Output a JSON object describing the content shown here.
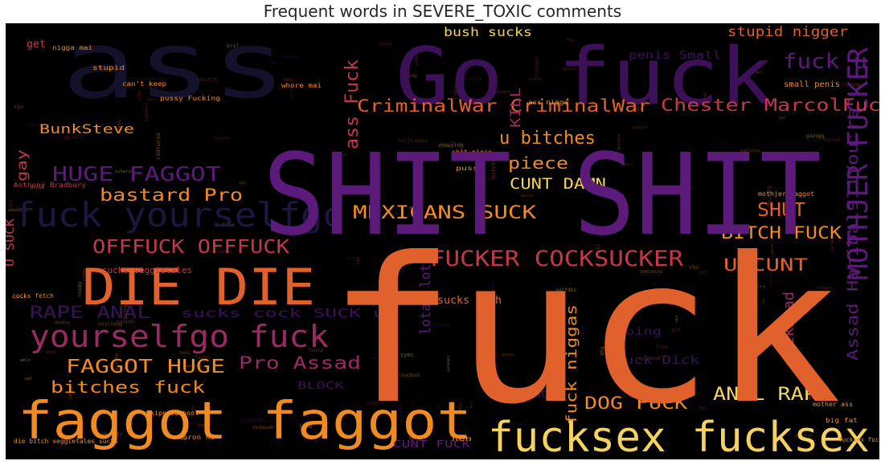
{
  "chart_data": {
    "type": "wordcloud",
    "title": "Frequent words in SEVERE_TOXIC comments",
    "background": "#000000",
    "colormap": "inferno",
    "colors": {
      "purple": "#5c1a7a",
      "deep_purple": "#3d1158",
      "orange": "#e0612c",
      "amber": "#f28a22",
      "yellow": "#f5d25e",
      "red": "#c4384a",
      "magenta": "#9b2964",
      "navy": "#14112b"
    },
    "words": [
      {
        "text": "fuck",
        "weight": 1.0,
        "color": "#e0612c"
      },
      {
        "text": "SHIT SHIT",
        "weight": 0.78,
        "color": "#5c1a7a"
      },
      {
        "text": "ass",
        "weight": 0.6,
        "color": "#14112b"
      },
      {
        "text": "Go fuck",
        "weight": 0.6,
        "color": "#3d1158"
      },
      {
        "text": "faggot faggot",
        "weight": 0.45,
        "color": "#f28a22"
      },
      {
        "text": "DIE DIE",
        "weight": 0.43,
        "color": "#e0612c"
      },
      {
        "text": "fucksex fucksex",
        "weight": 0.33,
        "color": "#f5d25e"
      },
      {
        "text": "fuck yourselfgo",
        "weight": 0.28,
        "color": "#1d1640"
      },
      {
        "text": "yourselfgo fuck",
        "weight": 0.26,
        "color": "#9b2964"
      },
      {
        "text": "MOTHJER FUCKER",
        "weight": 0.24,
        "color": "#5c1a7a"
      },
      {
        "text": "FUCKER COCKSUCKER",
        "weight": 0.17,
        "color": "#c4384a"
      },
      {
        "text": "fuck u",
        "weight": 0.17,
        "color": "#5c1a7a"
      },
      {
        "text": "HUGE FAGGOT",
        "weight": 0.16,
        "color": "#5c1a7a"
      },
      {
        "text": "OFFFUCK OFFFUCK",
        "weight": 0.15,
        "color": "#c4384a"
      },
      {
        "text": "FAGGOT HUGE",
        "weight": 0.15,
        "color": "#f28a22"
      },
      {
        "text": "MEXICANS SUCK",
        "weight": 0.14,
        "color": "#f28a22"
      },
      {
        "text": "CriminalWar CriminalWar",
        "weight": 0.14,
        "color": "#e0612c"
      },
      {
        "text": "Chester MarcolFuck",
        "weight": 0.14,
        "color": "#c4384a"
      },
      {
        "text": "ANAL RAPE",
        "weight": 0.14,
        "color": "#f5d25e"
      },
      {
        "text": "Pro Assad",
        "weight": 0.14,
        "color": "#9b2964"
      },
      {
        "text": "bitches fuck",
        "weight": 0.14,
        "color": "#f28a22"
      },
      {
        "text": "u bitches",
        "weight": 0.14,
        "color": "#f28a22"
      },
      {
        "text": "BITCH FUCK",
        "weight": 0.14,
        "color": "#f28a22"
      },
      {
        "text": "DOG FUCK",
        "weight": 0.14,
        "color": "#f28a22"
      },
      {
        "text": "SHUT",
        "weight": 0.14,
        "color": "#e0612c"
      },
      {
        "text": "bastard Pro",
        "weight": 0.14,
        "color": "#f28a22"
      },
      {
        "text": "piece",
        "weight": 0.13,
        "color": "#f28a22"
      },
      {
        "text": "CUNT DAMN",
        "weight": 0.13,
        "color": "#f5d25e"
      },
      {
        "text": "U CUNT",
        "weight": 0.13,
        "color": "#e0612c"
      },
      {
        "text": "Assad Hanibal911You're",
        "weight": 0.12,
        "color": "#5c1a7a"
      },
      {
        "text": "RAPE ANAL",
        "weight": 0.12,
        "color": "#3d1158"
      },
      {
        "text": "dickhead",
        "weight": 0.12,
        "color": "#9b2964"
      },
      {
        "text": "fuck niggas",
        "weight": 0.12,
        "color": "#f28a22"
      },
      {
        "text": "ass Fuck",
        "weight": 0.12,
        "color": "#c4384a"
      },
      {
        "text": "U SUCK",
        "weight": 0.11,
        "color": "#c4384a"
      },
      {
        "text": "BunkSteve",
        "weight": 0.11,
        "color": "#f28a22"
      },
      {
        "text": "gay",
        "weight": 0.11,
        "color": "#c4384a"
      },
      {
        "text": "lotat lotat",
        "weight": 0.11,
        "color": "#5c1a7a"
      },
      {
        "text": "KILL",
        "weight": 0.1,
        "color": "#9b2964"
      },
      {
        "text": "stupid nigger",
        "weight": 0.1,
        "color": "#e0612c"
      },
      {
        "text": "sucks cock SUCK u",
        "weight": 0.1,
        "color": "#3d1158"
      },
      {
        "text": "going",
        "weight": 0.09,
        "color": "#3d1158"
      },
      {
        "text": "bush sucks",
        "weight": 0.09,
        "color": "#f5d25e"
      },
      {
        "text": "penis Small",
        "weight": 0.08,
        "color": "#3d1158"
      },
      {
        "text": "suck Dick",
        "weight": 0.08,
        "color": "#3d1158"
      },
      {
        "text": "sucks Bush",
        "weight": 0.07,
        "color": "#e0612c"
      },
      {
        "text": "BLOCK",
        "weight": 0.07,
        "color": "#3d1158"
      },
      {
        "text": "CUNT FUCK",
        "weight": 0.07,
        "color": "#5c1a7a"
      },
      {
        "text": "BACK",
        "weight": 0.07,
        "color": "#3d1158"
      },
      {
        "text": "sucks veggietales",
        "weight": 0.05,
        "color": "#c4384a"
      },
      {
        "text": "Anthony Bradbury",
        "weight": 0.05,
        "color": "#c4384a"
      },
      {
        "text": "get",
        "weight": 0.05,
        "color": "#c4384a"
      },
      {
        "text": "nigga mai",
        "weight": 0.04,
        "color": "#f28a22"
      },
      {
        "text": "stupid",
        "weight": 0.04,
        "color": "#f28a22"
      },
      {
        "text": "can't keep",
        "weight": 0.04,
        "color": "#f28a22"
      },
      {
        "text": "pussy Fucking",
        "weight": 0.04,
        "color": "#f28a22"
      },
      {
        "text": "whore mai",
        "weight": 0.04,
        "color": "#f28a22"
      },
      {
        "text": "ass nigga",
        "weight": 0.04,
        "color": "#f28a22"
      },
      {
        "text": "shit piece",
        "weight": 0.04,
        "color": "#f28a22"
      },
      {
        "text": "pussy",
        "weight": 0.04,
        "color": "#f28a22"
      },
      {
        "text": "mothjer faggot",
        "weight": 0.04,
        "color": "#f28a22"
      },
      {
        "text": "small penis",
        "weight": 0.04,
        "color": "#f28a22"
      },
      {
        "text": "mother ass",
        "weight": 0.04,
        "color": "#f28a22"
      },
      {
        "text": "big fat",
        "weight": 0.04,
        "color": "#f28a22"
      },
      {
        "text": "wikipedia bool",
        "weight": 0.04,
        "color": "#f28a22"
      },
      {
        "text": "moron hi",
        "weight": 0.04,
        "color": "#f28a22"
      },
      {
        "text": "die bitch veggietales sucks",
        "weight": 0.04,
        "color": "#f28a22"
      },
      {
        "text": "fucksex fuck",
        "weight": 0.04,
        "color": "#f28a22"
      },
      {
        "text": "cocks fetch",
        "weight": 0.04,
        "color": "#f28a22"
      },
      {
        "text": "heh",
        "weight": 0.04,
        "color": "#f28a22"
      }
    ]
  }
}
